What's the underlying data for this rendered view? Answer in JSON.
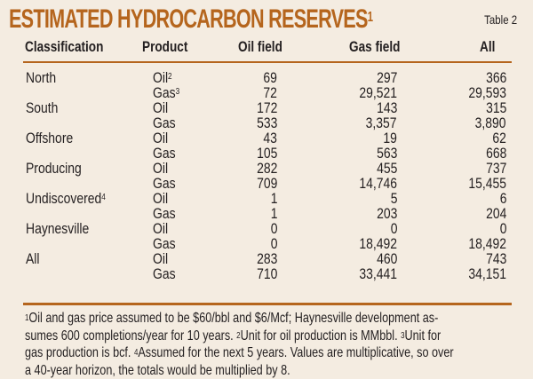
{
  "title": {
    "text": "ESTIMATED HYDROCARBON RESERVES",
    "superscript": "1"
  },
  "table_label": "Table 2",
  "colors": {
    "accent": "#b5651d",
    "background": "#f4ece1",
    "text": "#231f20"
  },
  "columns": {
    "classification": "Classification",
    "product": "Product",
    "oil_field": "Oil field",
    "gas_field": "Gas field",
    "all": "All"
  },
  "rows": [
    {
      "classification": "North",
      "class_sup": "",
      "product": "Oil",
      "product_sup": "2",
      "oil_field": "69",
      "gas_field": "297",
      "all": "366"
    },
    {
      "classification": "",
      "class_sup": "",
      "product": "Gas",
      "product_sup": "3",
      "oil_field": "72",
      "gas_field": "29,521",
      "all": "29,593"
    },
    {
      "classification": "South",
      "class_sup": "",
      "product": "Oil",
      "product_sup": "",
      "oil_field": "172",
      "gas_field": "143",
      "all": "315"
    },
    {
      "classification": "",
      "class_sup": "",
      "product": "Gas",
      "product_sup": "",
      "oil_field": "533",
      "gas_field": "3,357",
      "all": "3,890"
    },
    {
      "classification": "Offshore",
      "class_sup": "",
      "product": "Oil",
      "product_sup": "",
      "oil_field": "43",
      "gas_field": "19",
      "all": "62"
    },
    {
      "classification": "",
      "class_sup": "",
      "product": "Gas",
      "product_sup": "",
      "oil_field": "105",
      "gas_field": "563",
      "all": "668"
    },
    {
      "classification": "Producing",
      "class_sup": "",
      "product": "Oil",
      "product_sup": "",
      "oil_field": "282",
      "gas_field": "455",
      "all": "737"
    },
    {
      "classification": "",
      "class_sup": "",
      "product": "Gas",
      "product_sup": "",
      "oil_field": "709",
      "gas_field": "14,746",
      "all": "15,455"
    },
    {
      "classification": "Undiscovered",
      "class_sup": "4",
      "product": "Oil",
      "product_sup": "",
      "oil_field": "1",
      "gas_field": "5",
      "all": "6"
    },
    {
      "classification": "",
      "class_sup": "",
      "product": "Gas",
      "product_sup": "",
      "oil_field": "1",
      "gas_field": "203",
      "all": "204"
    },
    {
      "classification": "Haynesville",
      "class_sup": "",
      "product": "Oil",
      "product_sup": "",
      "oil_field": "0",
      "gas_field": "0",
      "all": "0"
    },
    {
      "classification": "",
      "class_sup": "",
      "product": "Gas",
      "product_sup": "",
      "oil_field": "0",
      "gas_field": "18,492",
      "all": "18,492"
    },
    {
      "classification": "All",
      "class_sup": "",
      "product": "Oil",
      "product_sup": "",
      "oil_field": "283",
      "gas_field": "460",
      "all": "743"
    },
    {
      "classification": "",
      "class_sup": "",
      "product": "Gas",
      "product_sup": "",
      "oil_field": "710",
      "gas_field": "33,441",
      "all": "34,151"
    }
  ],
  "footnotes": [
    {
      "mark": "1",
      "text": "Oil and gas price assumed to be $60/bbl and $6/Mcf; Haynesville development as-"
    },
    {
      "mark": "",
      "text": "sumes 600 completions/year for 10 years. "
    },
    {
      "mark": "2",
      "text": "Unit for oil production is MMbbl. "
    },
    {
      "mark": "3",
      "text": "Unit for"
    },
    {
      "mark": "",
      "text": "gas production is bcf. "
    },
    {
      "mark": "4",
      "text": "Assumed for the next 5 years. Values are multiplicative, so over"
    },
    {
      "mark": "",
      "text": "a 40-year horizon, the totals would be multiplied by 8."
    }
  ]
}
